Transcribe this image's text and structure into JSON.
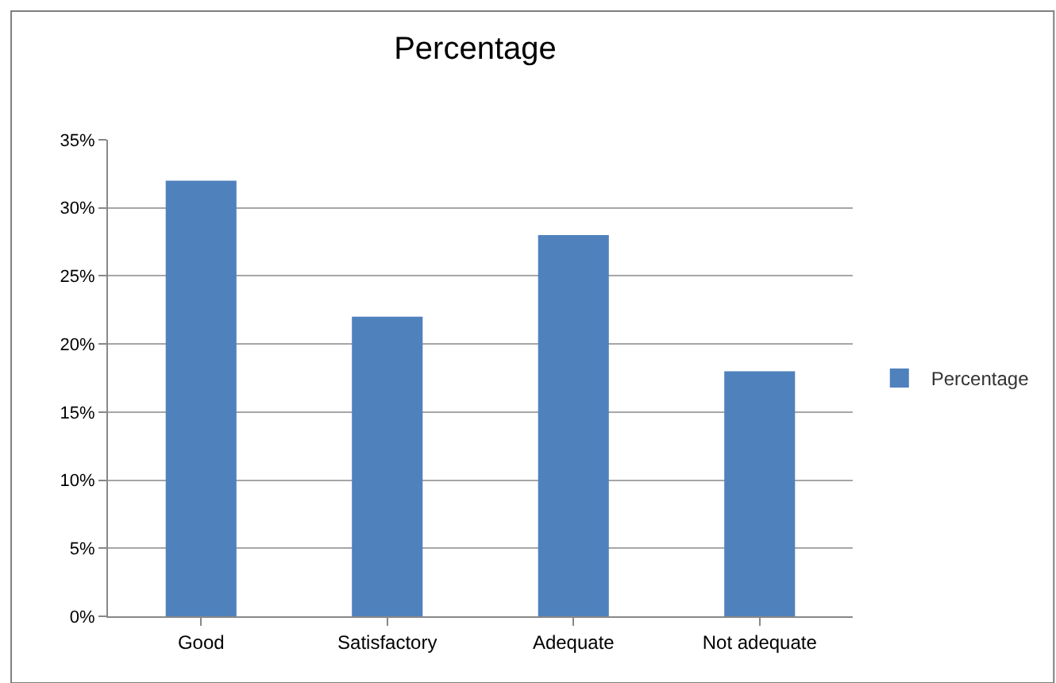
{
  "chart_data": {
    "type": "bar",
    "title": "Percentage",
    "categories": [
      "Good",
      "Satisfactory",
      "Adequate",
      "Not adequate"
    ],
    "series": [
      {
        "name": "Percentage",
        "color": "#4f81bd",
        "values": [
          32,
          22,
          28,
          18
        ]
      }
    ],
    "ylim": [
      0,
      35
    ],
    "yticks": [
      {
        "value": 0,
        "label": "0%"
      },
      {
        "value": 5,
        "label": "5%"
      },
      {
        "value": 10,
        "label": "10%"
      },
      {
        "value": 15,
        "label": "15%"
      },
      {
        "value": 20,
        "label": "20%"
      },
      {
        "value": 25,
        "label": "25%"
      },
      {
        "value": 30,
        "label": "30%"
      },
      {
        "value": 35,
        "label": "35%"
      }
    ],
    "grid": "y",
    "legend": "right"
  }
}
